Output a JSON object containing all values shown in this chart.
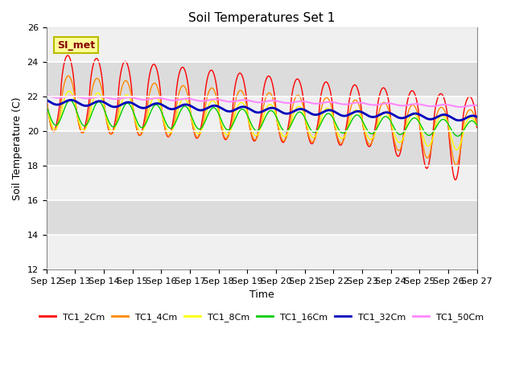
{
  "title": "Soil Temperatures Set 1",
  "xlabel": "Time",
  "ylabel": "Soil Temperature (C)",
  "ylim": [
    12,
    26
  ],
  "yticks": [
    12,
    14,
    16,
    18,
    20,
    22,
    24,
    26
  ],
  "x_tick_labels": [
    "Sep 12",
    "Sep 13",
    "Sep 14",
    "Sep 15",
    "Sep 16",
    "Sep 17",
    "Sep 18",
    "Sep 19",
    "Sep 20",
    "Sep 21",
    "Sep 22",
    "Sep 23",
    "Sep 24",
    "Sep 25",
    "Sep 26",
    "Sep 27"
  ],
  "series": [
    {
      "name": "TC1_2Cm",
      "color": "#FF0000",
      "lw": 1.0
    },
    {
      "name": "TC1_4Cm",
      "color": "#FF8800",
      "lw": 1.0
    },
    {
      "name": "TC1_8Cm",
      "color": "#FFFF00",
      "lw": 1.0
    },
    {
      "name": "TC1_16Cm",
      "color": "#00CC00",
      "lw": 1.0
    },
    {
      "name": "TC1_32Cm",
      "color": "#0000BB",
      "lw": 2.0
    },
    {
      "name": "TC1_50Cm",
      "color": "#FF88FF",
      "lw": 1.5
    }
  ],
  "annotation_text": "SI_met",
  "annotation_color": "#880000",
  "annotation_bg": "#FFFF99",
  "annotation_border": "#BBBB00",
  "bg_color": "#FFFFFF",
  "plot_bg_light": "#F0F0F0",
  "plot_bg_dark": "#DCDCDC",
  "grid_color": "#FFFFFF"
}
